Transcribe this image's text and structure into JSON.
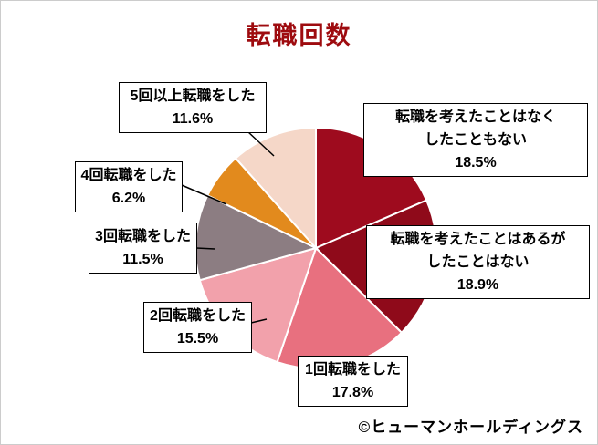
{
  "title": "転職回数",
  "footer": "©ヒューマンホールディングス",
  "colors": {
    "title": "#9E0B0F",
    "label_border": "#000000",
    "label_background": "#FFFFFF",
    "separator": "#FFFFFF",
    "background": "#FFFFFF"
  },
  "chart_data": {
    "type": "pie",
    "title": "転職回数",
    "start_angle_deg": -90,
    "direction": "clockwise",
    "legend_position": "none",
    "labels_style": "callout-boxes",
    "slices": [
      {
        "label": "転職を考えたことはなくしたこともない",
        "label_lines": [
          "転職を考えたことはなく",
          "したこともない"
        ],
        "value": 18.5,
        "pct_label": "18.5%",
        "color": "#9E0B1E"
      },
      {
        "label": "転職を考えたことはあるがしたことはない",
        "label_lines": [
          "転職を考えたことはあるが",
          "したことはない"
        ],
        "value": 18.9,
        "pct_label": "18.9%",
        "color": "#8F0A1A"
      },
      {
        "label": "1回転職をした",
        "label_lines": [
          "1回転職をした"
        ],
        "value": 17.8,
        "pct_label": "17.8%",
        "color": "#E8707F"
      },
      {
        "label": "2回転職をした",
        "label_lines": [
          "2回転職をした"
        ],
        "value": 15.5,
        "pct_label": "15.5%",
        "color": "#F2A1AB"
      },
      {
        "label": "3回転職をした",
        "label_lines": [
          "3回転職をした"
        ],
        "value": 11.5,
        "pct_label": "11.5%",
        "color": "#8C7D82"
      },
      {
        "label": "4回転職をした",
        "label_lines": [
          "4回転職をした"
        ],
        "value": 6.2,
        "pct_label": "6.2%",
        "color": "#E28A1D"
      },
      {
        "label": "5回以上転職をした",
        "label_lines": [
          "5回以上転職をした"
        ],
        "value": 11.6,
        "pct_label": "11.6%",
        "color": "#F5D7C8"
      }
    ]
  }
}
